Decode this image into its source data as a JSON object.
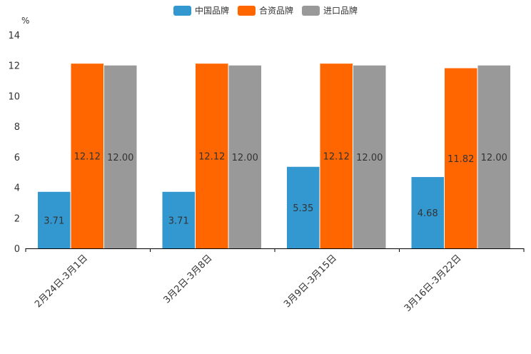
{
  "chart_data": {
    "type": "bar",
    "categories": [
      "2月24日-3月1日",
      "3月2日-3月8日",
      "3月9日-3月15日",
      "3月16日-3月22日"
    ],
    "series": [
      {
        "name": "中国品牌",
        "values": [
          3.71,
          3.71,
          5.35,
          4.68
        ],
        "color": "#3498d0"
      },
      {
        "name": "合资品牌",
        "values": [
          12.12,
          12.12,
          12.12,
          11.82
        ],
        "color": "#ff6600"
      },
      {
        "name": "进口品牌",
        "values": [
          12.0,
          12.0,
          12.0,
          12.0
        ],
        "color": "#999999"
      }
    ],
    "data_labels": [
      [
        "3.71",
        "3.71",
        "5.35",
        "4.68"
      ],
      [
        "12.12",
        "12.12",
        "12.12",
        "11.82"
      ],
      [
        "12.00",
        "12.00",
        "12.00",
        "12.00"
      ]
    ],
    "y_unit": "%",
    "ylim": [
      0,
      14
    ],
    "yticks": [
      0,
      2,
      4,
      6,
      8,
      10,
      12,
      14
    ],
    "grid": false,
    "legend": "top-center"
  }
}
